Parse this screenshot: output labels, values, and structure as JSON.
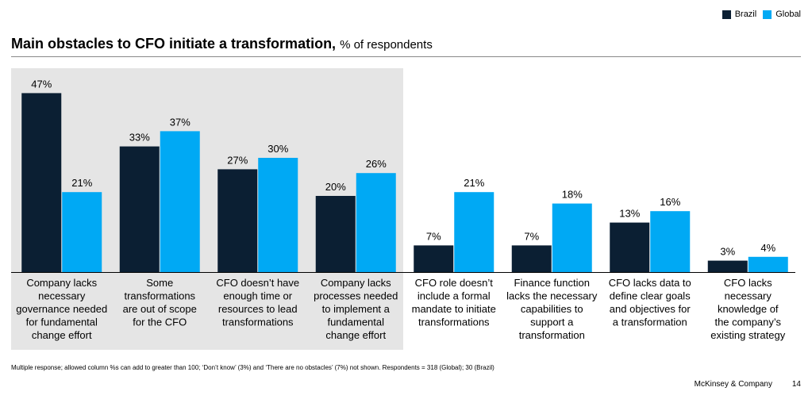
{
  "legend": {
    "brazil": {
      "label": "Brazil",
      "color": "#0b1f33"
    },
    "global": {
      "label": "Global",
      "color": "#00a9f4"
    }
  },
  "header": {
    "title_main": "Main obstacles to CFO initiate a transformation,",
    "title_sub": "% of respondents"
  },
  "chart_data": {
    "type": "bar",
    "title": "Main obstacles to CFO initiate a transformation, % of respondents",
    "xlabel": "",
    "ylabel": "% of respondents",
    "ylim": [
      0,
      50
    ],
    "grid": false,
    "legend_position": "top-right",
    "highlighted_categories": [
      0,
      1,
      2,
      3
    ],
    "categories": [
      [
        "Company lacks",
        "necessary",
        "governance needed",
        "for fundamental",
        "change effort"
      ],
      [
        "Some",
        "transformations",
        "are out of scope",
        "for the CFO"
      ],
      [
        "CFO doesn’t have",
        "enough time or",
        "resources to lead",
        "transformations"
      ],
      [
        "Company lacks",
        "processes needed",
        "to implement a",
        "fundamental",
        "change effort"
      ],
      [
        "CFO role doesn’t",
        "include a formal",
        "mandate to initiate",
        "transformations"
      ],
      [
        "Finance function",
        "lacks the necessary",
        "capabilities to",
        "support a",
        "transformation"
      ],
      [
        "CFO lacks data to",
        "define clear goals",
        "and objectives for",
        "a transformation"
      ],
      [
        "CFO lacks",
        "necessary",
        "knowledge of",
        "the company’s",
        "existing strategy"
      ]
    ],
    "series": [
      {
        "name": "Brazil",
        "color": "#0b1f33",
        "values": [
          47,
          33,
          27,
          20,
          7,
          7,
          13,
          3
        ],
        "labels": [
          "47%",
          "33%",
          "27%",
          "20%",
          "7%",
          "7%",
          "13%",
          "3%"
        ]
      },
      {
        "name": "Global",
        "color": "#00a9f4",
        "values": [
          21,
          37,
          30,
          26,
          21,
          18,
          16,
          4
        ],
        "labels": [
          "21%",
          "37%",
          "30%",
          "26%",
          "21%",
          "18%",
          "16%",
          "4%"
        ]
      }
    ]
  },
  "footnote": "Multiple response; allowed column %s can add to greater than 100; ‘Don’t know’ (3%) and ‘There are no obstacles’ (7%) not shown. Respondents = 318 (Global); 30 (Brazil)",
  "footer": {
    "brand": "McKinsey & Company",
    "page": "14"
  }
}
